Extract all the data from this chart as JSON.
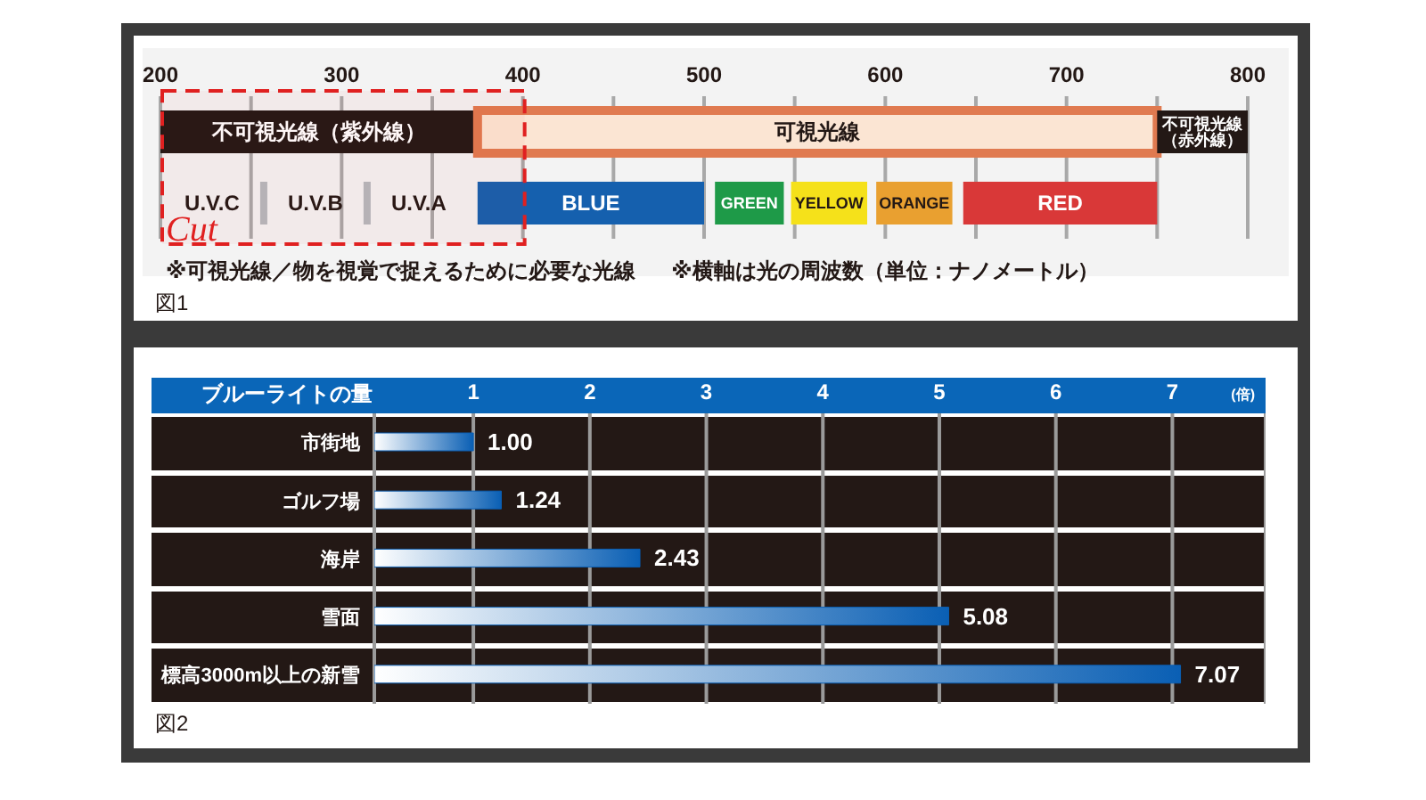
{
  "chart_data": [
    {
      "type": "bar",
      "orientation": "horizontal",
      "categories": [
        null,
        null
      ],
      "xlim": [
        200,
        800
      ],
      "xticks": [
        200,
        {
          "value": 250,
          "label": null
        },
        300,
        {
          "value": 350,
          "label": null
        },
        400,
        {
          "value": 450,
          "label": null
        },
        500,
        {
          "value": 550,
          "label": null
        },
        600,
        {
          "value": 650,
          "label": null
        },
        700,
        {
          "value": 750,
          "label": null
        },
        800
      ],
      "grid": "x",
      "tick_labels": "x",
      "series": [
        {
          "name": "不可視光線（紫外線）",
          "color": "#231815",
          "values": [
            175,
            null
          ],
          "base": [
            200,
            null
          ]
        },
        {
          "name": "可視光線",
          "color": "#fbe5d3",
          "values": [
            375,
            null
          ],
          "base": [
            375,
            null
          ]
        },
        {
          "name": "不可視光線（赤外線）",
          "color": "#231815",
          "values": [
            50,
            null
          ],
          "base": [
            750,
            null
          ]
        },
        {
          "name": "BLUE",
          "color": "#1560ae",
          "values": [
            null,
            125
          ],
          "base": [
            null,
            375
          ]
        },
        {
          "name": "GREEN",
          "color": "#1e9a48",
          "values": [
            null,
            38
          ],
          "base": [
            null,
            506
          ]
        },
        {
          "name": "YELLOW",
          "color": "#f5e11a",
          "values": [
            null,
            42
          ],
          "base": [
            null,
            548
          ]
        },
        {
          "name": "ORANGE",
          "color": "#e9a030",
          "values": [
            null,
            42
          ],
          "base": [
            null,
            595
          ]
        },
        {
          "name": "RED",
          "color": "#d93838",
          "values": [
            null,
            107
          ],
          "base": [
            null,
            643
          ]
        }
      ],
      "bands": [
        {
          "axis": "x",
          "from": 200,
          "to": 400,
          "label": "Cut",
          "color": "#e02020"
        }
      ],
      "annotations": [
        "U.V.C",
        "U.V.B",
        "U.V.A",
        "※可視光線／物を視覚で捉えるために必要な光線",
        "※横軸は光の周波数（単位：ナノメートル）",
        "図1"
      ]
    },
    {
      "type": "bar",
      "orientation": "horizontal",
      "categories": [
        "市街地",
        "ゴルフ場",
        "海岸",
        "雪面",
        "標高3000m以上の新雪"
      ],
      "values": [
        1.0,
        1.24,
        2.43,
        5.08,
        7.07
      ],
      "value_labels": [
        "1.00",
        "1.24",
        "2.43",
        "5.08",
        "7.07"
      ],
      "color": "#0a5fb4",
      "xlim": [
        0.15,
        7.8
      ],
      "xticks": [
        1,
        2,
        3,
        4,
        5,
        6,
        7
      ],
      "grid": "x",
      "ylabel": "ブルーライトの量",
      "xlabel": "(倍)",
      "annotations": [
        "図2"
      ]
    }
  ]
}
